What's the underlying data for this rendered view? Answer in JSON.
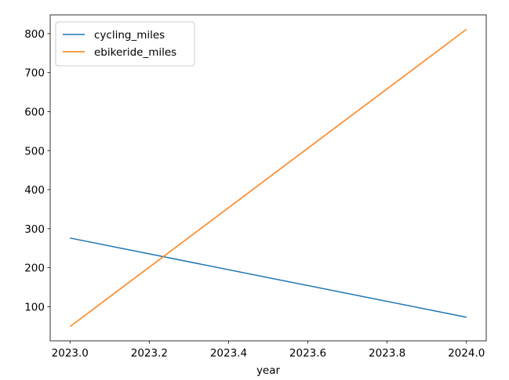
{
  "chart_data": {
    "type": "line",
    "xlabel": "year",
    "ylabel": "",
    "title": "",
    "x": [
      2023.0,
      2024.0
    ],
    "xlim": [
      2022.95,
      2024.05
    ],
    "ylim": [
      12.5,
      848.0
    ],
    "xticks": [
      2023.0,
      2023.2,
      2023.4,
      2023.6,
      2023.8,
      2024.0
    ],
    "xtick_labels": [
      "2023.0",
      "2023.2",
      "2023.4",
      "2023.6",
      "2023.8",
      "2024.0"
    ],
    "yticks": [
      100,
      200,
      300,
      400,
      500,
      600,
      700,
      800
    ],
    "ytick_labels": [
      "100",
      "200",
      "300",
      "400",
      "500",
      "600",
      "700",
      "800"
    ],
    "grid": false,
    "legend_position": "top-left",
    "series": [
      {
        "name": "cycling_miles",
        "color": "#1f77b4",
        "values": [
          276,
          73
        ]
      },
      {
        "name": "ebikeride_miles",
        "color": "#ff7f0e",
        "values": [
          49,
          811
        ]
      }
    ]
  }
}
